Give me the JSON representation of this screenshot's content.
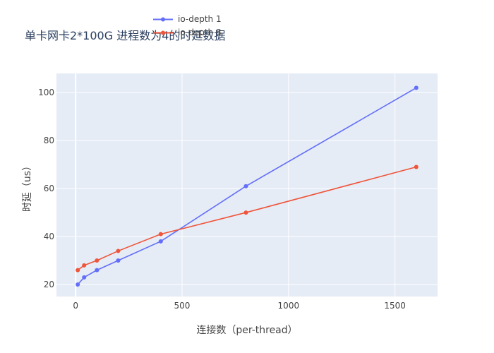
{
  "chart_data": {
    "type": "line",
    "title": "单卡网卡2*100G 进程数为4的时延数据",
    "xlabel": "连接数（per-thread）",
    "ylabel": "时延（us）",
    "xlim": [
      -90,
      1700
    ],
    "ylim": [
      15,
      108
    ],
    "x_ticks": [
      0,
      500,
      1000,
      1500
    ],
    "y_ticks": [
      20,
      40,
      60,
      80,
      100
    ],
    "grid": true,
    "legend_position": "top",
    "series": [
      {
        "name": "io-depth 1",
        "color": "#636efa",
        "x": [
          10,
          40,
          100,
          200,
          400,
          800,
          1600
        ],
        "y": [
          20,
          23,
          26,
          30,
          38,
          61,
          102
        ]
      },
      {
        "name": "io-depth 8",
        "color": "#ef553b",
        "x": [
          10,
          40,
          100,
          200,
          400,
          800,
          1600
        ],
        "y": [
          26,
          28,
          30,
          34,
          41,
          50,
          69
        ]
      }
    ],
    "plot_background": "#e5ecf6"
  }
}
